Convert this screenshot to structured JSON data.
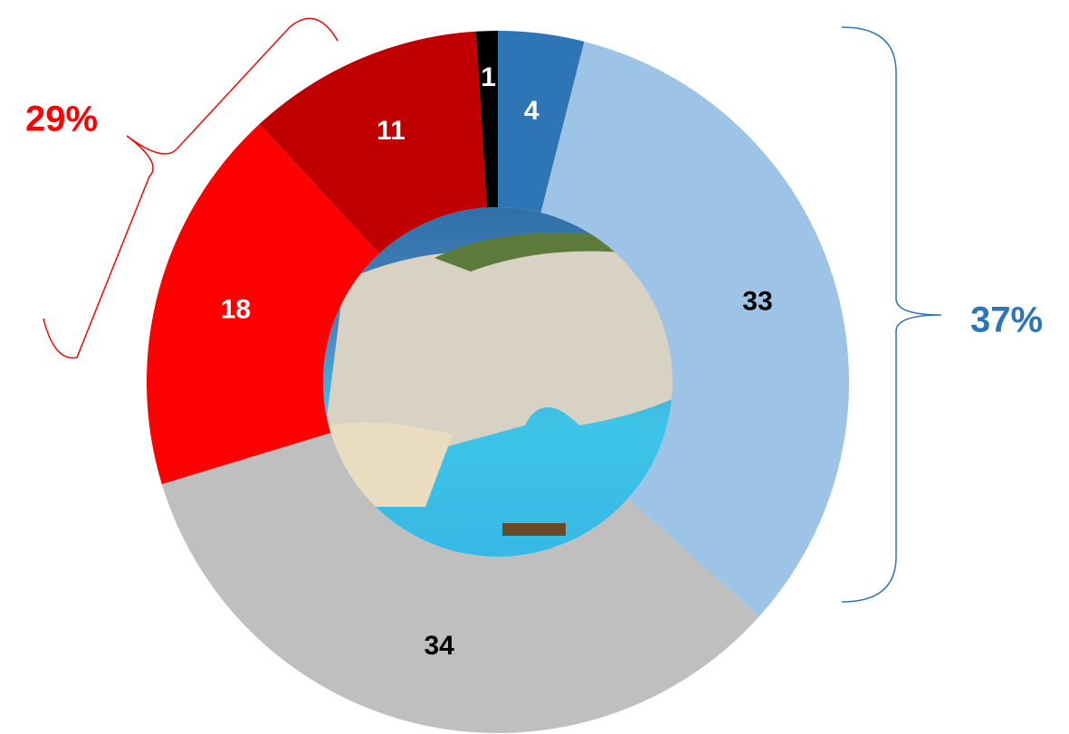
{
  "chart_data": {
    "type": "donut",
    "values": [
      4,
      33,
      34,
      18,
      11,
      1
    ],
    "colors": [
      "#2e75b6",
      "#9dc3e6",
      "#bfbfbf",
      "#ff0000",
      "#c00000",
      "#000000"
    ],
    "label_colors": [
      "#ffffff",
      "#000000",
      "#000000",
      "#ffffff",
      "#ffffff",
      "#ffffff"
    ],
    "annotations": [
      "37%",
      "29%"
    ],
    "annotation_colors": [
      "#2e75b6",
      "#ff0000"
    ]
  }
}
